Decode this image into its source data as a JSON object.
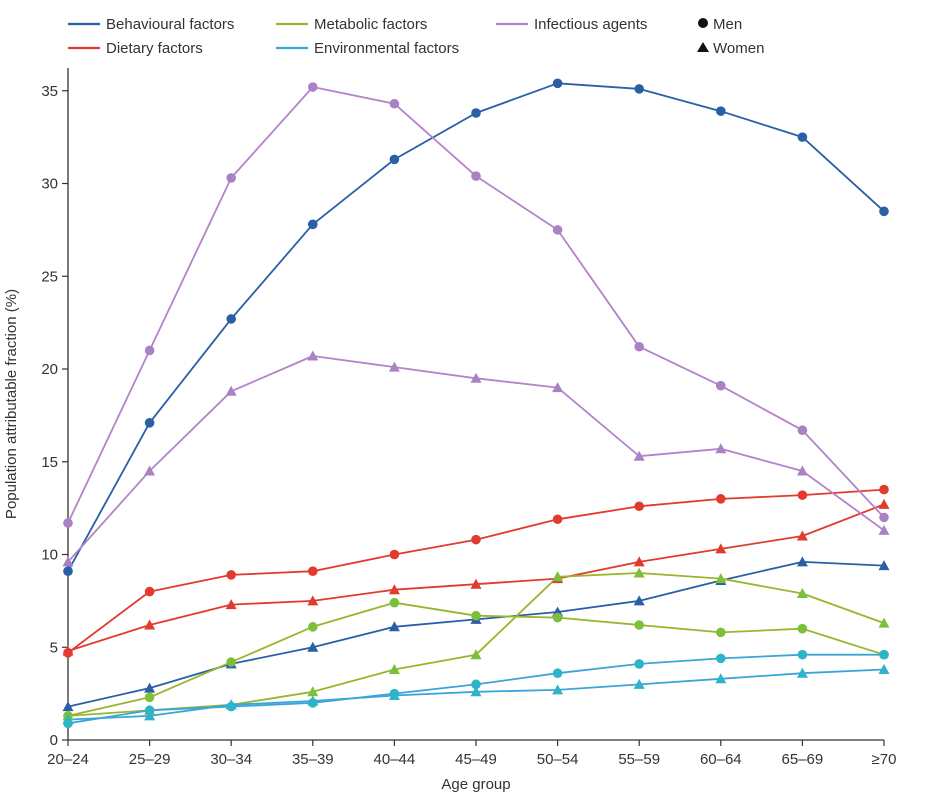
{
  "chart_data": {
    "type": "line",
    "title": "",
    "xlabel": "Age group",
    "ylabel": "Population attributable fraction (%)",
    "ylim": [
      0,
      36
    ],
    "yticks": [
      0,
      5,
      10,
      15,
      20,
      25,
      30,
      35
    ],
    "ytick_labels": [
      "0",
      "5",
      "10",
      "15",
      "20",
      "25",
      "30",
      "35"
    ],
    "categories": [
      "20–24",
      "25–29",
      "30–34",
      "35–39",
      "40–44",
      "45–49",
      "50–54",
      "55–59",
      "60–64",
      "65–69",
      "≥70"
    ],
    "legend_position": "top",
    "legend": {
      "factors": [
        {
          "name": "Behavioural factors",
          "color": "#2a5fa6"
        },
        {
          "name": "Dietary factors",
          "color": "#e23a2e"
        },
        {
          "name": "Metabolic factors",
          "color": "#9ab52d"
        },
        {
          "name": "Environmental factors",
          "color": "#3aa5d8"
        },
        {
          "name": "Infectious agents",
          "color": "#b483c8"
        }
      ],
      "sexes": [
        {
          "name": "Men",
          "marker": "circle"
        },
        {
          "name": "Women",
          "marker": "triangle"
        }
      ]
    },
    "series": [
      {
        "factor": "Behavioural factors",
        "sex": "Men",
        "color": "#2a5fa6",
        "marker_color": "#2a5fa6",
        "marker": "circle",
        "values": [
          9.1,
          17.1,
          22.7,
          27.8,
          31.3,
          33.8,
          35.4,
          35.1,
          33.9,
          32.5,
          28.5
        ]
      },
      {
        "factor": "Behavioural factors",
        "sex": "Women",
        "color": "#2a5fa6",
        "marker_color": "#2a5fa6",
        "marker": "triangle",
        "values": [
          1.8,
          2.8,
          4.1,
          5.0,
          6.1,
          6.5,
          6.9,
          7.5,
          8.6,
          9.6,
          9.4
        ]
      },
      {
        "factor": "Dietary factors",
        "sex": "Men",
        "color": "#e23a2e",
        "marker_color": "#e23a2e",
        "marker": "circle",
        "values": [
          4.7,
          8.0,
          8.9,
          9.1,
          10.0,
          10.8,
          11.9,
          12.6,
          13.0,
          13.2,
          13.5
        ]
      },
      {
        "factor": "Dietary factors",
        "sex": "Women",
        "color": "#e23a2e",
        "marker_color": "#e23a2e",
        "marker": "triangle",
        "values": [
          4.8,
          6.2,
          7.3,
          7.5,
          8.1,
          8.4,
          8.7,
          9.6,
          10.3,
          11.0,
          12.7
        ]
      },
      {
        "factor": "Metabolic factors",
        "sex": "Men",
        "color": "#9ab52d",
        "marker_color": "#7cbf3a",
        "marker": "circle",
        "values": [
          1.3,
          2.3,
          4.2,
          6.1,
          7.4,
          6.7,
          6.6,
          6.2,
          5.8,
          6.0,
          4.6
        ]
      },
      {
        "factor": "Metabolic factors",
        "sex": "Women",
        "color": "#9ab52d",
        "marker_color": "#7cbf3a",
        "marker": "triangle",
        "values": [
          1.3,
          1.6,
          1.9,
          2.6,
          3.8,
          4.6,
          8.8,
          9.0,
          8.7,
          7.9,
          6.3
        ]
      },
      {
        "factor": "Environmental factors",
        "sex": "Men",
        "color": "#3aa5d8",
        "marker_color": "#2fb3c8",
        "marker": "circle",
        "values": [
          0.9,
          1.6,
          1.8,
          2.0,
          2.5,
          3.0,
          3.6,
          4.1,
          4.4,
          4.6,
          4.6
        ]
      },
      {
        "factor": "Environmental factors",
        "sex": "Women",
        "color": "#3aa5d8",
        "marker_color": "#2fb3c8",
        "marker": "triangle",
        "values": [
          1.1,
          1.3,
          1.9,
          2.1,
          2.4,
          2.6,
          2.7,
          3.0,
          3.3,
          3.6,
          3.8
        ]
      },
      {
        "factor": "Infectious agents",
        "sex": "Men",
        "color": "#b483c8",
        "marker_color": "#a982c4",
        "marker": "circle",
        "values": [
          11.7,
          21.0,
          30.3,
          35.2,
          34.3,
          30.4,
          27.5,
          21.2,
          19.1,
          16.7,
          12.0
        ]
      },
      {
        "factor": "Infectious agents",
        "sex": "Women",
        "color": "#b483c8",
        "marker_color": "#a982c4",
        "marker": "triangle",
        "values": [
          9.6,
          14.5,
          18.8,
          20.7,
          20.1,
          19.5,
          19.0,
          15.3,
          15.7,
          14.5,
          11.3
        ]
      }
    ]
  }
}
